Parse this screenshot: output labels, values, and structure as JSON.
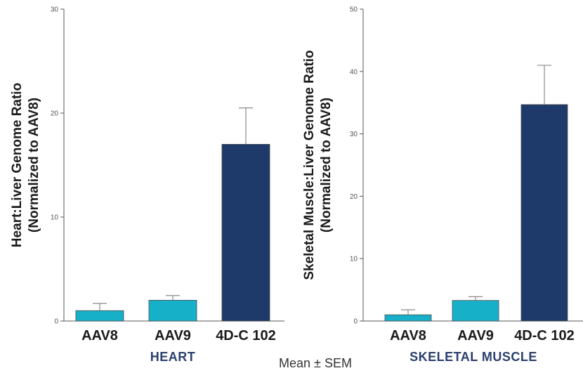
{
  "footnote": "Mean ± SEM",
  "colors": {
    "light_bar": "#17b0c9",
    "dark_bar": "#1d3a6b",
    "axis": "#555555"
  },
  "chart_data": [
    {
      "type": "bar",
      "panel_label": "HEART",
      "ylabel_line1": "Heart:Liver Genome Ratio",
      "ylabel_line2": "(Normalized to AAV8)",
      "categories": [
        "AAV8",
        "AAV9",
        "4D-C 102"
      ],
      "values": [
        1.0,
        2.0,
        17.0
      ],
      "error_upper": [
        0.7,
        0.45,
        3.5
      ],
      "ylim": [
        0,
        30
      ],
      "yticks": [
        0,
        10,
        20,
        30
      ],
      "bar_colors": [
        "#17b0c9",
        "#17b0c9",
        "#1d3a6b"
      ]
    },
    {
      "type": "bar",
      "panel_label": "SKELETAL MUSCLE",
      "ylabel_line1": "Skeletal Muscle:Liver Genome Ratio",
      "ylabel_line2": "(Normalized to AAV8)",
      "categories": [
        "AAV8",
        "AAV9",
        "4D-C 102"
      ],
      "values": [
        1.0,
        3.3,
        34.7
      ],
      "error_upper": [
        0.8,
        0.6,
        6.3
      ],
      "ylim": [
        0,
        50
      ],
      "yticks": [
        0,
        10,
        20,
        30,
        40,
        50
      ],
      "bar_colors": [
        "#17b0c9",
        "#17b0c9",
        "#1d3a6b"
      ]
    }
  ]
}
